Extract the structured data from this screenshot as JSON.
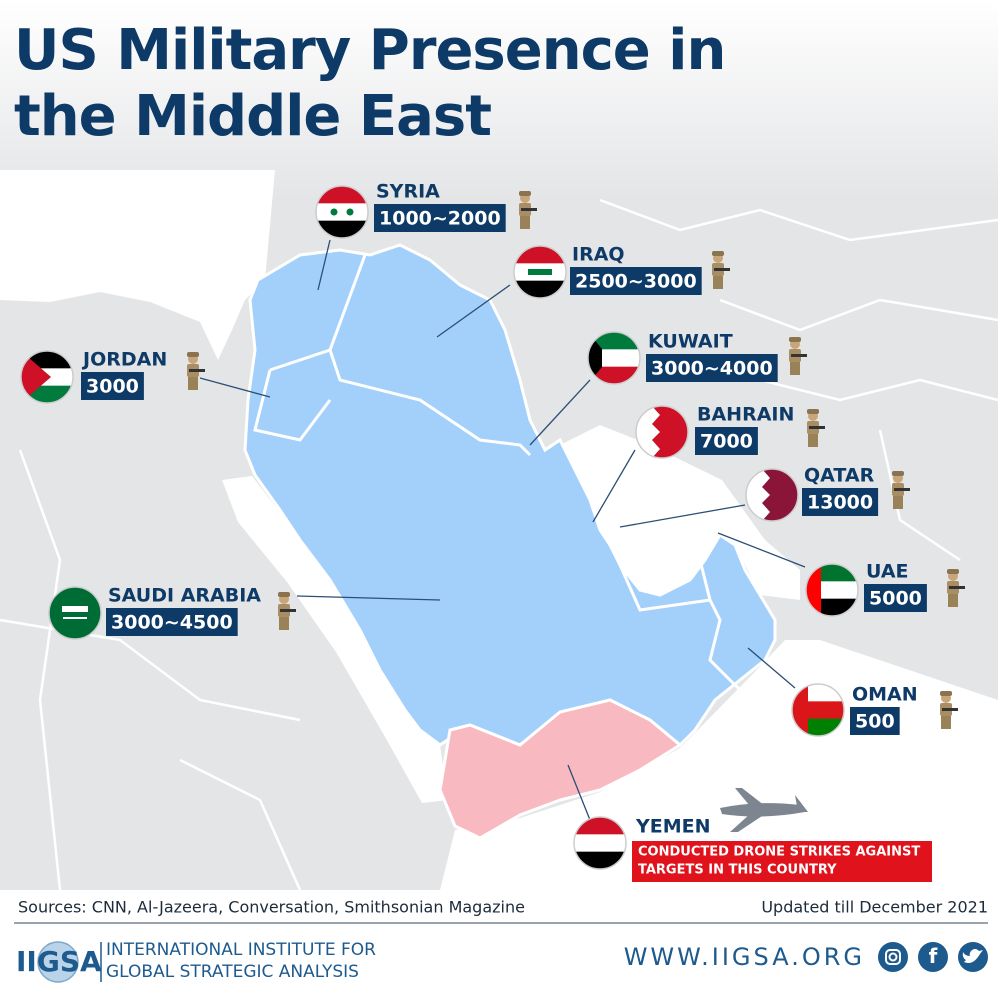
{
  "title": "US Military Presence in the Middle East",
  "countries": [
    {
      "name": "SYRIA",
      "troops": "1000~2000"
    },
    {
      "name": "IRAQ",
      "troops": "2500~3000"
    },
    {
      "name": "JORDAN",
      "troops": "3000"
    },
    {
      "name": "KUWAIT",
      "troops": "3000~4000"
    },
    {
      "name": "BAHRAIN",
      "troops": "7000"
    },
    {
      "name": "QATAR",
      "troops": "13000"
    },
    {
      "name": "UAE",
      "troops": "5000"
    },
    {
      "name": "SAUDI ARABIA",
      "troops": "3000~4500"
    },
    {
      "name": "OMAN",
      "troops": "500"
    }
  ],
  "yemen": {
    "name": "YEMEN",
    "note": [
      "CONDUCTED DRONE STRIKES AGAINST",
      "TARGETS IN THIS COUNTRY"
    ]
  },
  "footer": {
    "sources": "Sources: CNN, Al-Jazeera, Conversation, Smithsonian Magazine",
    "updated": "Updated till December 2021",
    "logo": "IIGSA",
    "org": [
      "INTERNATIONAL INSTITUTE FOR",
      "GLOBAL STRATEGIC ANALYSIS"
    ],
    "website": "WWW.IIGSA.ORG"
  }
}
